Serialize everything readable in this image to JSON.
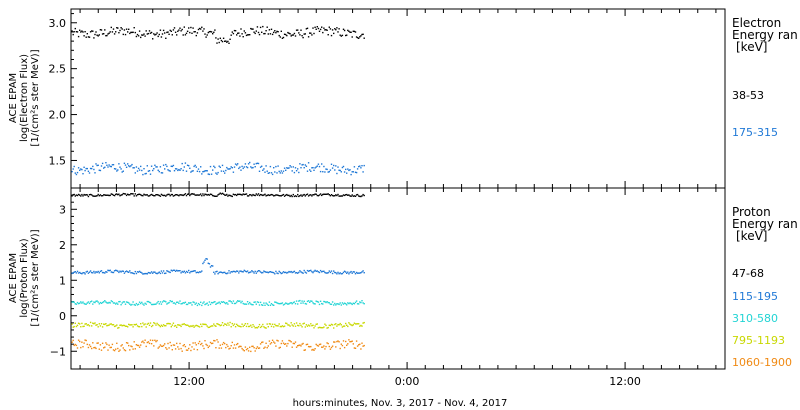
{
  "chart_data": [
    {
      "type": "scatter",
      "panel": "electron",
      "ylabel_lines": [
        "ACE EPAM",
        "log(Electron Flux)",
        "[1/(cm²s ster MeV)]"
      ],
      "ylim": [
        1.2,
        3.15
      ],
      "yticks": [
        1.5,
        2.0,
        2.5,
        3.0
      ],
      "ytick_labels": [
        "1.5",
        "2.0",
        "2.5",
        "3.0"
      ],
      "legend_title_lines": [
        "Electron",
        "Energy ran",
        "[keV]"
      ],
      "series": [
        {
          "name": "38-53",
          "color": "#000000",
          "mean": 2.9,
          "spread": 0.05
        },
        {
          "name": "175-315",
          "color": "#1f78d6",
          "mean": 1.42,
          "spread": 0.05
        }
      ]
    },
    {
      "type": "scatter",
      "panel": "proton",
      "ylabel_lines": [
        "ACE EPAM",
        "log(Proton Flux)",
        "[1/(cm²s ster MeV)]"
      ],
      "ylim": [
        -1.5,
        3.6
      ],
      "yticks": [
        -1,
        0,
        1,
        2,
        3
      ],
      "ytick_labels": [
        "−1",
        "0",
        "1",
        "2",
        "3"
      ],
      "legend_title_lines": [
        "Proton",
        "Energy ran",
        "[keV]"
      ],
      "series": [
        {
          "name": "47-68",
          "color": "#000000",
          "mean": 3.42,
          "spread": 0.03
        },
        {
          "name": "115-195",
          "color": "#1f78d6",
          "mean": 1.25,
          "spread": 0.04
        },
        {
          "name": "310-580",
          "color": "#22d4d4",
          "mean": 0.38,
          "spread": 0.05
        },
        {
          "name": "795-1193",
          "color": "#c8d800",
          "mean": -0.25,
          "spread": 0.06
        },
        {
          "name": "1060-1900",
          "color": "#f08a14",
          "mean": -0.82,
          "spread": 0.12
        }
      ]
    }
  ],
  "x_axis": {
    "range_hours": [
      5.5,
      41.5
    ],
    "data_end_hours": 21.6,
    "ticks": [
      {
        "hour": 12,
        "label": "12:00"
      },
      {
        "hour": 24,
        "label": "0:00"
      },
      {
        "hour": 36,
        "label": "12:00"
      }
    ],
    "xlabel": "hours:minutes, Nov.  3, 2017 - Nov.  4, 2017"
  }
}
